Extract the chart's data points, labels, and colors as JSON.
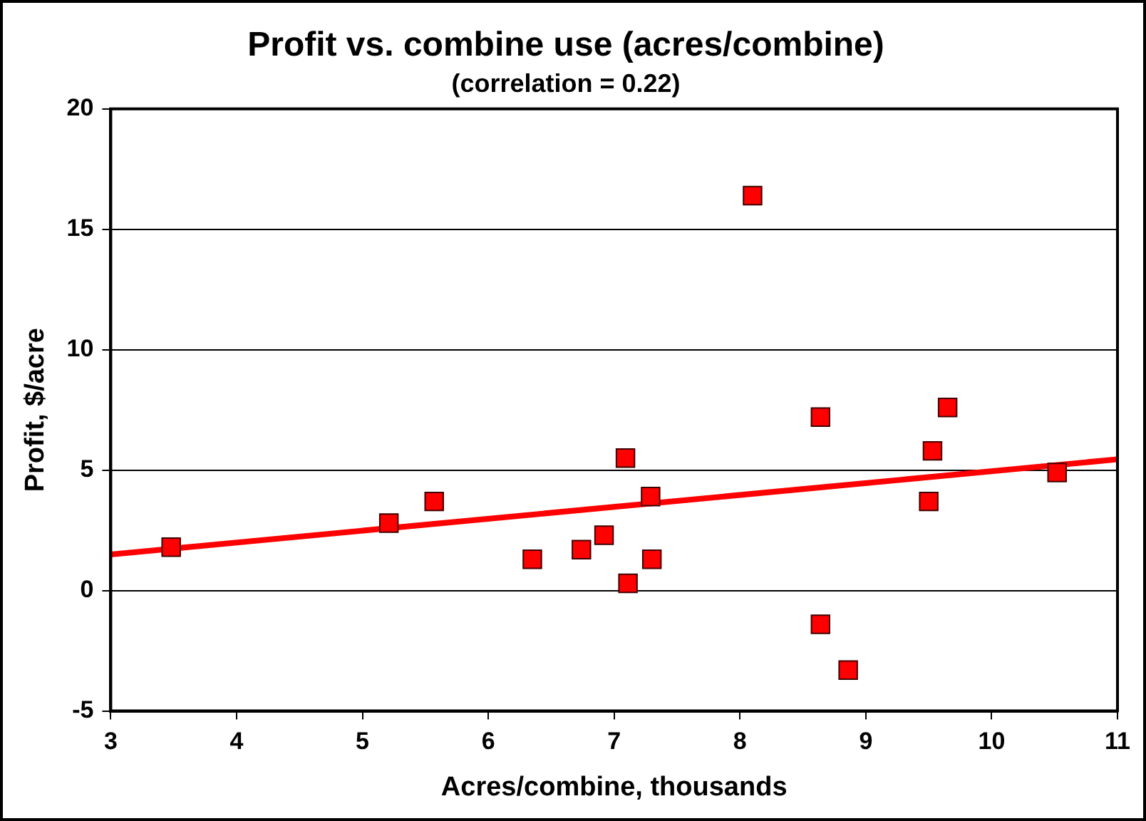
{
  "chart_data": {
    "type": "scatter",
    "title": "Profit vs. combine use (acres/combine)",
    "subtitle": "(correlation = 0.22)",
    "xlabel": "Acres/combine, thousands",
    "ylabel": "Profit, $/acre",
    "xlim": [
      3,
      11
    ],
    "xticks": [
      3,
      4,
      5,
      6,
      7,
      8,
      9,
      10,
      11
    ],
    "ylim": [
      -5,
      20
    ],
    "yticks": [
      -5,
      0,
      5,
      10,
      15,
      20
    ],
    "grid": "y",
    "legend": false,
    "series": [
      {
        "type": "scatter",
        "marker": "square",
        "color": "#ff0000",
        "x": [
          3.48,
          5.21,
          5.57,
          6.35,
          6.74,
          6.92,
          7.09,
          7.11,
          7.29,
          7.3,
          8.1,
          8.64,
          8.64,
          8.86,
          9.5,
          9.53,
          9.65,
          10.52
        ],
        "values": [
          1.8,
          2.8,
          3.7,
          1.3,
          1.7,
          2.3,
          5.5,
          0.3,
          3.9,
          1.3,
          16.4,
          7.2,
          -1.4,
          -3.3,
          3.7,
          5.8,
          7.6,
          4.9
        ]
      },
      {
        "type": "line",
        "marker": "none",
        "color": "#ff0000",
        "x": [
          3,
          11
        ],
        "values": [
          1.5,
          5.45
        ]
      }
    ]
  }
}
